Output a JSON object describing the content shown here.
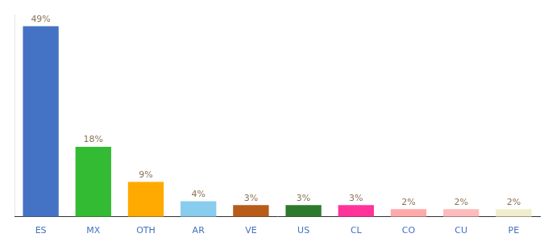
{
  "chart_data": {
    "type": "bar",
    "categories": [
      "ES",
      "MX",
      "OTH",
      "AR",
      "VE",
      "US",
      "CL",
      "CO",
      "CU",
      "PE"
    ],
    "values": [
      49,
      18,
      9,
      4,
      3,
      3,
      3,
      2,
      2,
      2
    ],
    "value_labels": [
      "49%",
      "18%",
      "9%",
      "4%",
      "3%",
      "3%",
      "3%",
      "2%",
      "2%",
      "2%"
    ],
    "colors": [
      "#4472c4",
      "#33bb33",
      "#ffaa00",
      "#88ccee",
      "#b85c1a",
      "#2d7a2d",
      "#ff3399",
      "#ffaaaa",
      "#ffbbbb",
      "#f0eecc"
    ],
    "ylim": [
      0,
      52
    ],
    "grid": false,
    "data_labels": true,
    "tick_labels": "x"
  }
}
